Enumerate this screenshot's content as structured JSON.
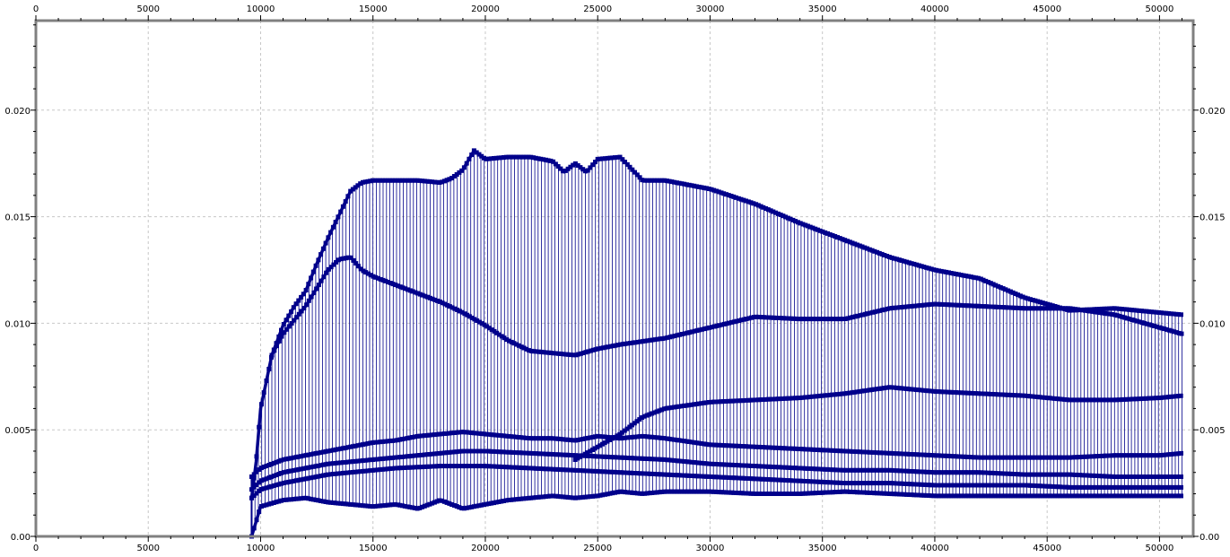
{
  "colors": {
    "series": "#00008b",
    "grid": "#c8c8c8",
    "frame": "#808080",
    "tick": "#000000",
    "background": "#ffffff"
  },
  "chart_data": {
    "type": "scatter",
    "title": "",
    "xlabel": "",
    "ylabel": "",
    "xlim": [
      0,
      51500
    ],
    "ylim": [
      0,
      0.0242
    ],
    "grid": true,
    "legend": "none",
    "axes_mirrored": true,
    "marker": "square",
    "connected_by_thin_vertical_lines": true,
    "x_ticks": [
      {
        "value": 0,
        "label": "0"
      },
      {
        "value": 5000,
        "label": "5000"
      },
      {
        "value": 10000,
        "label": "10000"
      },
      {
        "value": 15000,
        "label": "15000"
      },
      {
        "value": 20000,
        "label": "20000"
      },
      {
        "value": 25000,
        "label": "25000"
      },
      {
        "value": 30000,
        "label": "30000"
      },
      {
        "value": 35000,
        "label": "35000"
      },
      {
        "value": 40000,
        "label": "40000"
      },
      {
        "value": 45000,
        "label": "45000"
      },
      {
        "value": 50000,
        "label": "50000"
      }
    ],
    "y_ticks": [
      {
        "value": 0,
        "label": "0.00"
      },
      {
        "value": 0.005,
        "label": "0.005"
      },
      {
        "value": 0.01,
        "label": "0.010"
      },
      {
        "value": 0.015,
        "label": "0.015"
      },
      {
        "value": 0.02,
        "label": "0.020"
      }
    ],
    "x_start": 9600,
    "x_end": 51000,
    "series": [
      {
        "role": "upper envelope",
        "x": [
          9600,
          9800,
          10000,
          10500,
          11000,
          11500,
          12000,
          12500,
          13000,
          13500,
          14000,
          14500,
          15000,
          16000,
          17000,
          18000,
          18500,
          19000,
          19500,
          20000,
          21000,
          22000,
          23000,
          23500,
          24000,
          24500,
          25000,
          26000,
          27000,
          28000,
          30000,
          32000,
          34000,
          36000,
          38000,
          40000,
          42000,
          44000,
          46000,
          48000,
          50000,
          51000
        ],
        "y": [
          0.0018,
          0.0035,
          0.006,
          0.0085,
          0.0099,
          0.0108,
          0.0115,
          0.0128,
          0.014,
          0.0151,
          0.0162,
          0.0166,
          0.0167,
          0.0167,
          0.0167,
          0.0166,
          0.0168,
          0.0172,
          0.0181,
          0.0177,
          0.0178,
          0.0178,
          0.0176,
          0.0171,
          0.0175,
          0.0171,
          0.0177,
          0.0178,
          0.0167,
          0.0167,
          0.0163,
          0.0156,
          0.0147,
          0.0139,
          0.0131,
          0.0125,
          0.0121,
          0.0112,
          0.0106,
          0.0107,
          0.0105,
          0.0104
        ]
      },
      {
        "role": "upper-middle band",
        "x": [
          10500,
          11000,
          12000,
          13000,
          13500,
          14000,
          14500,
          15000,
          16000,
          17000,
          18000,
          19000,
          20000,
          21000,
          22000,
          23000,
          24000,
          25000,
          26000,
          28000,
          30000,
          32000,
          34000,
          36000,
          38000,
          40000,
          42000,
          44000,
          46000,
          48000,
          50000,
          51000
        ],
        "y": [
          0.0085,
          0.0095,
          0.0108,
          0.0125,
          0.013,
          0.0131,
          0.0125,
          0.0122,
          0.0118,
          0.0114,
          0.011,
          0.0105,
          0.0099,
          0.0092,
          0.0087,
          0.0086,
          0.0085,
          0.0088,
          0.009,
          0.0093,
          0.0098,
          0.0103,
          0.0102,
          0.0102,
          0.0107,
          0.0109,
          0.0108,
          0.0107,
          0.0107,
          0.0104,
          0.0098,
          0.0095
        ]
      },
      {
        "role": "middle band",
        "x": [
          24000,
          25000,
          26000,
          27000,
          28000,
          30000,
          32000,
          34000,
          36000,
          38000,
          40000,
          42000,
          44000,
          46000,
          48000,
          50000,
          51000
        ],
        "y": [
          0.0036,
          0.0042,
          0.0048,
          0.0056,
          0.006,
          0.0063,
          0.0064,
          0.0065,
          0.0067,
          0.007,
          0.0068,
          0.0067,
          0.0066,
          0.0064,
          0.0064,
          0.0065,
          0.0066
        ]
      },
      {
        "role": "lower band 1",
        "x": [
          9600,
          10000,
          11000,
          12000,
          13000,
          14000,
          15000,
          16000,
          17000,
          18000,
          19000,
          20000,
          21000,
          22000,
          23000,
          24000,
          25000,
          26000,
          27000,
          28000,
          30000,
          32000,
          34000,
          36000,
          38000,
          40000,
          42000,
          44000,
          46000,
          48000,
          50000,
          51000
        ],
        "y": [
          0.0028,
          0.0032,
          0.0036,
          0.0038,
          0.004,
          0.0042,
          0.0044,
          0.0045,
          0.0047,
          0.0048,
          0.0049,
          0.0048,
          0.0047,
          0.0046,
          0.0046,
          0.0045,
          0.0047,
          0.0046,
          0.0047,
          0.0046,
          0.0043,
          0.0042,
          0.0041,
          0.004,
          0.0039,
          0.0038,
          0.0037,
          0.0037,
          0.0037,
          0.0038,
          0.0038,
          0.0039
        ]
      },
      {
        "role": "lower band 2",
        "x": [
          9600,
          10000,
          11000,
          12000,
          13000,
          14000,
          15000,
          16000,
          17000,
          18000,
          19000,
          20000,
          22000,
          24000,
          26000,
          28000,
          30000,
          32000,
          34000,
          36000,
          38000,
          40000,
          42000,
          44000,
          46000,
          48000,
          50000,
          51000
        ],
        "y": [
          0.0022,
          0.0026,
          0.003,
          0.0032,
          0.0034,
          0.0035,
          0.0036,
          0.0037,
          0.0038,
          0.0039,
          0.004,
          0.004,
          0.0039,
          0.0038,
          0.0037,
          0.0036,
          0.0034,
          0.0033,
          0.0032,
          0.0031,
          0.0031,
          0.003,
          0.003,
          0.0029,
          0.0029,
          0.0028,
          0.0028,
          0.0028
        ]
      },
      {
        "role": "lower band 3",
        "x": [
          9600,
          10000,
          11000,
          12000,
          13000,
          14000,
          15000,
          16000,
          18000,
          20000,
          22000,
          24000,
          26000,
          28000,
          30000,
          32000,
          34000,
          36000,
          38000,
          40000,
          42000,
          44000,
          46000,
          48000,
          50000,
          51000
        ],
        "y": [
          0.0018,
          0.0022,
          0.0025,
          0.0027,
          0.0029,
          0.003,
          0.0031,
          0.0032,
          0.0033,
          0.0033,
          0.0032,
          0.0031,
          0.003,
          0.0029,
          0.0028,
          0.0027,
          0.0026,
          0.0025,
          0.0025,
          0.0024,
          0.0024,
          0.0024,
          0.0023,
          0.0023,
          0.0023,
          0.0023
        ]
      },
      {
        "role": "lower envelope",
        "x": [
          9600,
          10000,
          11000,
          12000,
          13000,
          14000,
          15000,
          16000,
          17000,
          18000,
          19000,
          20000,
          21000,
          22000,
          23000,
          24000,
          25000,
          26000,
          27000,
          28000,
          30000,
          32000,
          34000,
          36000,
          38000,
          40000,
          42000,
          44000,
          46000,
          48000,
          50000,
          51000
        ],
        "y": [
          0.0,
          0.0014,
          0.0017,
          0.0018,
          0.0016,
          0.0015,
          0.0014,
          0.0015,
          0.0013,
          0.0017,
          0.0013,
          0.0015,
          0.0017,
          0.0018,
          0.0019,
          0.0018,
          0.0019,
          0.0021,
          0.002,
          0.0021,
          0.0021,
          0.002,
          0.002,
          0.0021,
          0.002,
          0.0019,
          0.0019,
          0.0019,
          0.0019,
          0.0019,
          0.0019,
          0.0019
        ]
      }
    ]
  }
}
